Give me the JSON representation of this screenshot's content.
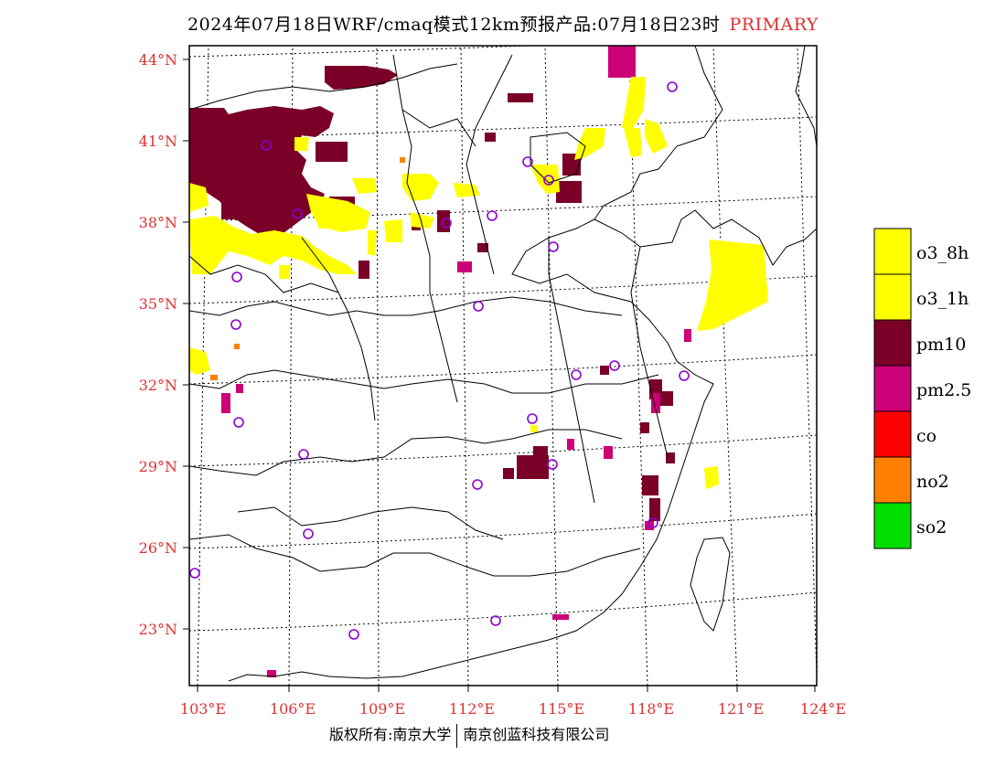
{
  "header": {
    "title": "2024年07月18日WRF/cmaq模式12km预报产品:07月18日23时",
    "tag": "PRIMARY"
  },
  "map": {
    "lat_labels": [
      "44°N",
      "41°N",
      "38°N",
      "35°N",
      "32°N",
      "29°N",
      "26°N",
      "23°N"
    ],
    "lon_labels": [
      "103°E",
      "106°E",
      "109°E",
      "112°E",
      "115°E",
      "118°E",
      "121°E",
      "124°E"
    ]
  },
  "legend": {
    "items": [
      {
        "label": "o3_8h",
        "color": "#ffff00"
      },
      {
        "label": "o3_1h",
        "color": "#ffff00"
      },
      {
        "label": "pm10",
        "color": "#7a0028"
      },
      {
        "label": "pm2.5",
        "color": "#cc0077"
      },
      {
        "label": "co",
        "color": "#ff0000"
      },
      {
        "label": "no2",
        "color": "#ff8000"
      },
      {
        "label": "so2",
        "color": "#00dd00"
      }
    ]
  },
  "footer": {
    "left": "版权所有:南京大学",
    "right": "南京创蓝科技有限公司"
  }
}
